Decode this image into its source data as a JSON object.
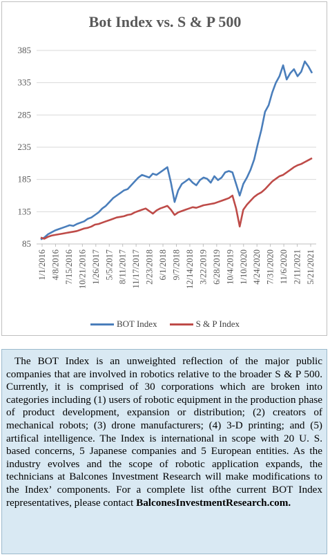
{
  "chart_data": {
    "type": "line",
    "title": "Bot Index vs. S & P 500",
    "ylim": [
      85,
      385
    ],
    "yticks": [
      85,
      135,
      185,
      235,
      285,
      335,
      385
    ],
    "xtick_labels": [
      "1/1/2016",
      "4/8/2016",
      "7/15/2016",
      "10/21/2016",
      "1/26/2017",
      "5/5/2017",
      "8/11/2017",
      "11/17/2017",
      "2/23/2018",
      "6/1/2018",
      "9/7/2018",
      "12/14/2018",
      "3/22/2019",
      "6/28/2019",
      "10/4/2019",
      "1/10/2020",
      "4/24/2020",
      "7/31/2020",
      "11/6/2020",
      "2/11/2021",
      "5/21/2021"
    ],
    "grid": true,
    "legend_position": "bottom",
    "series": [
      {
        "name": "BOT Index",
        "color": "#4a7ebb",
        "values": [
          92,
          95,
          100,
          103,
          106,
          108,
          110,
          112,
          114,
          113,
          116,
          118,
          120,
          124,
          126,
          130,
          134,
          140,
          144,
          150,
          156,
          160,
          164,
          168,
          170,
          176,
          182,
          188,
          192,
          190,
          188,
          194,
          192,
          196,
          200,
          204,
          180,
          150,
          168,
          178,
          182,
          186,
          180,
          176,
          184,
          188,
          186,
          180,
          190,
          184,
          188,
          196,
          198,
          196,
          178,
          160,
          178,
          188,
          200,
          216,
          240,
          262,
          290,
          300,
          320,
          335,
          345,
          362,
          340,
          350,
          356,
          345,
          352,
          368,
          360,
          350
        ]
      },
      {
        "name": "S & P Index",
        "color": "#be4b48",
        "values": [
          95,
          93,
          96,
          98,
          99,
          100,
          101,
          102,
          103,
          104,
          105,
          107,
          109,
          110,
          112,
          115,
          116,
          118,
          120,
          122,
          124,
          126,
          127,
          128,
          130,
          131,
          134,
          136,
          138,
          140,
          136,
          132,
          137,
          140,
          142,
          144,
          138,
          130,
          134,
          136,
          138,
          140,
          142,
          141,
          143,
          145,
          146,
          147,
          148,
          150,
          152,
          154,
          156,
          160,
          140,
          112,
          138,
          146,
          152,
          158,
          162,
          165,
          170,
          176,
          182,
          186,
          190,
          192,
          196,
          200,
          204,
          207,
          209,
          212,
          215,
          218
        ]
      }
    ]
  },
  "legend": {
    "bot_label": "BOT Index",
    "sp_label": "S & P Index"
  },
  "description": {
    "body": "The BOT Index is an unweighted reflection of the major public companies that are involved in robotics relative to the broader S & P 500. Currently, it is comprised of 30 corporations which are broken into categories including (1) users of robotic equipment in the production phase of product development, expansion or distribution; (2) creators of mechanical robots; (3) drone manufacturers; (4) 3-D printing; and (5) artifical intelligence. The Index is international in scope with 20 U. S. based concerns, 5 Japanese companies and 5 European entities. As the industry evolves and the scope of robotic application expands, the technicians at Balcones Investment Research will make modifications to the Index’ components. For a complete list ofthe current BOT Index representatives, please contact",
    "website": "BalconesInvestmentResearch.com."
  }
}
